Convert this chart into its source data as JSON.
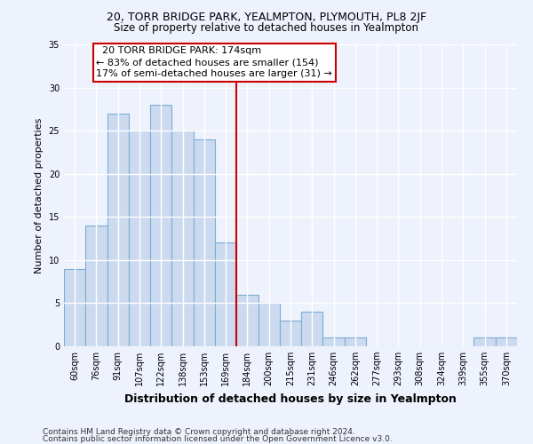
{
  "title1": "20, TORR BRIDGE PARK, YEALMPTON, PLYMOUTH, PL8 2JF",
  "title2": "Size of property relative to detached houses in Yealmpton",
  "xlabel": "Distribution of detached houses by size in Yealmpton",
  "ylabel": "Number of detached properties",
  "categories": [
    "60sqm",
    "76sqm",
    "91sqm",
    "107sqm",
    "122sqm",
    "138sqm",
    "153sqm",
    "169sqm",
    "184sqm",
    "200sqm",
    "215sqm",
    "231sqm",
    "246sqm",
    "262sqm",
    "277sqm",
    "293sqm",
    "308sqm",
    "324sqm",
    "339sqm",
    "355sqm",
    "370sqm"
  ],
  "values": [
    9,
    14,
    27,
    25,
    28,
    25,
    24,
    12,
    6,
    5,
    3,
    4,
    1,
    1,
    0,
    0,
    0,
    0,
    0,
    1,
    1
  ],
  "bar_color": "#ccdaf0",
  "bar_edge_color": "#7aadd4",
  "vline_x": 7.5,
  "vline_color": "#cc0000",
  "annotation_text": "  20 TORR BRIDGE PARK: 174sqm\n← 83% of detached houses are smaller (154)\n17% of semi-detached houses are larger (31) →",
  "annotation_box_color": "#ffffff",
  "annotation_box_edge_color": "#cc0000",
  "footer1": "Contains HM Land Registry data © Crown copyright and database right 2024.",
  "footer2": "Contains public sector information licensed under the Open Government Licence v3.0.",
  "ylim": [
    0,
    35
  ],
  "yticks": [
    0,
    5,
    10,
    15,
    20,
    25,
    30,
    35
  ],
  "background_color": "#eef2fc",
  "grid_color": "#ffffff",
  "title1_fontsize": 9,
  "title2_fontsize": 8.5,
  "ylabel_fontsize": 8,
  "xlabel_fontsize": 9,
  "tick_fontsize": 7,
  "footer_fontsize": 6.5,
  "annot_fontsize": 8
}
